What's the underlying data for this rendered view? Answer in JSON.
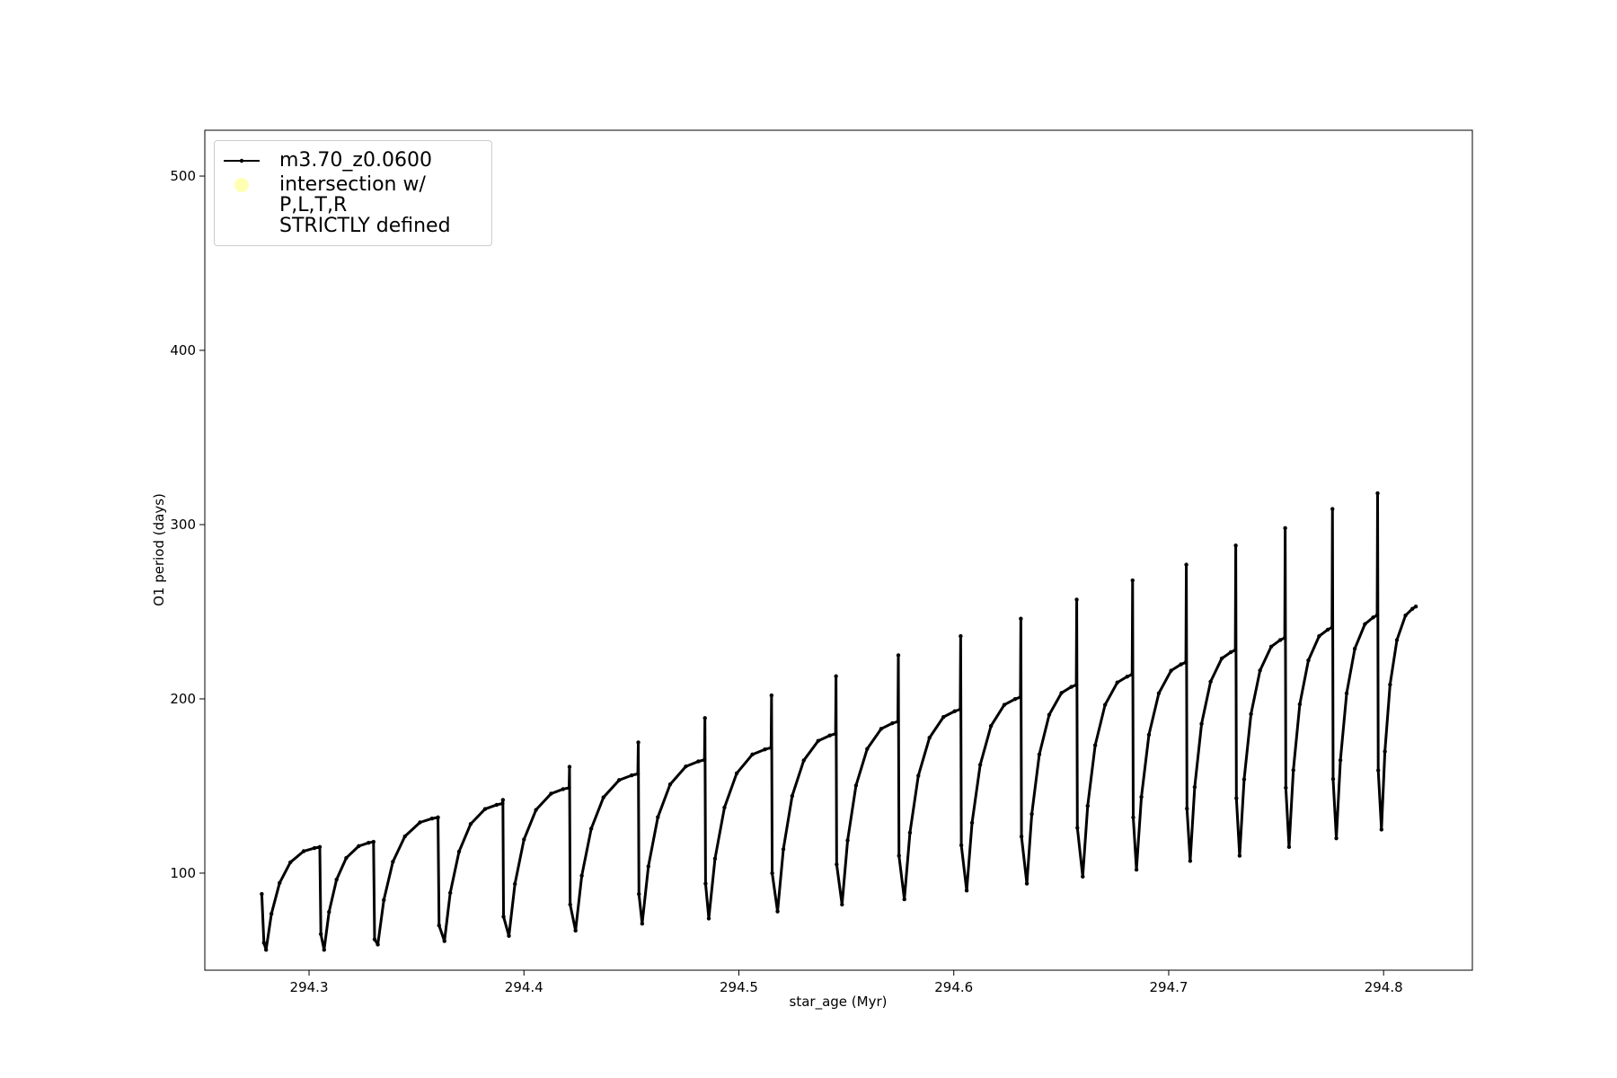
{
  "chart_data": {
    "type": "line",
    "xlabel": "star_age (Myr)",
    "ylabel": "O1 period (days)",
    "xlim": [
      294.2515,
      294.8413
    ],
    "ylim": [
      44.3,
      526.3
    ],
    "xticks": [
      294.3,
      294.4,
      294.5,
      294.6,
      294.7,
      294.8
    ],
    "yticks": [
      100,
      200,
      300,
      400,
      500
    ],
    "legend": "upper left",
    "series": [
      {
        "name": "m3.70_z0.0600",
        "color": "#000000",
        "x": [
          294.278,
          294.279,
          294.28,
          294.2825,
          294.2863,
          294.2913,
          294.2975,
          294.3025,
          294.305,
          294.3055,
          294.307,
          294.3093,
          294.3128,
          294.3173,
          294.3231,
          294.3277,
          294.33,
          294.3305,
          294.332,
          294.3348,
          294.339,
          294.3446,
          294.3516,
          294.3572,
          294.36,
          294.3605,
          294.363,
          294.3657,
          294.3698,
          294.3752,
          294.3819,
          294.3873,
          294.39,
          294.3902,
          294.3905,
          294.393,
          294.3958,
          294.4,
          294.4056,
          294.4126,
          294.4182,
          294.421,
          294.4212,
          294.4215,
          294.424,
          294.4269,
          294.4313,
          294.437,
          294.4443,
          294.4501,
          294.453,
          294.4532,
          294.4535,
          294.455,
          294.4579,
          294.4623,
          294.468,
          294.4753,
          294.4811,
          294.484,
          294.4842,
          294.4845,
          294.486,
          294.4889,
          294.4933,
          294.499,
          294.5063,
          294.5121,
          294.515,
          294.5152,
          294.5155,
          294.518,
          294.5207,
          294.5248,
          294.5302,
          294.5369,
          294.5423,
          294.545,
          294.5452,
          294.5455,
          294.548,
          294.5506,
          294.5545,
          294.5597,
          294.5662,
          294.5714,
          294.574,
          294.5742,
          294.5745,
          294.577,
          294.5796,
          294.5835,
          294.5887,
          294.5952,
          294.6004,
          294.603,
          294.6032,
          294.6035,
          294.606,
          294.6085,
          294.6123,
          294.6173,
          294.6235,
          294.6285,
          294.631,
          294.6312,
          294.6315,
          294.634,
          294.6363,
          294.6398,
          294.6444,
          294.6501,
          294.6547,
          294.657,
          294.6572,
          294.6575,
          294.66,
          294.6623,
          294.6658,
          294.6704,
          294.6761,
          294.6807,
          294.683,
          294.6832,
          294.6835,
          294.685,
          294.6873,
          294.6908,
          294.6954,
          294.7011,
          294.7057,
          294.708,
          294.7082,
          294.7085,
          294.71,
          294.7121,
          294.7153,
          294.7195,
          294.7247,
          294.7289,
          294.731,
          294.7312,
          294.7315,
          294.733,
          294.7351,
          294.7383,
          294.7425,
          294.7477,
          294.7519,
          294.754,
          294.7542,
          294.7545,
          294.756,
          294.758,
          294.761,
          294.765,
          294.77,
          294.774,
          294.776,
          294.7762,
          294.7765,
          294.778,
          294.7799,
          294.7828,
          294.7866,
          294.7913,
          294.7951,
          294.797,
          294.7972,
          294.7975,
          294.799,
          294.8006,
          294.803,
          294.8062,
          294.8102,
          294.8134,
          294.815
        ],
        "values": [
          88,
          60,
          56,
          76.7,
          94.4,
          106.2,
          112.6,
          114.4,
          115,
          65,
          56,
          77.7,
          96.3,
          108.7,
          115.5,
          117.4,
          118,
          62,
          59,
          84.6,
          106.5,
          121.1,
          129.1,
          131.3,
          132,
          70,
          61,
          88.7,
          112.4,
          128.2,
          136.8,
          139.2,
          140,
          142,
          75,
          64,
          93.8,
          119.3,
          136.3,
          145.6,
          148.2,
          149,
          161,
          82,
          67,
          98.5,
          125.5,
          143.5,
          153.4,
          156.1,
          157,
          175,
          88,
          71,
          103.9,
          132.1,
          150.9,
          161.2,
          164.1,
          165,
          189,
          94,
          74,
          108.3,
          137.7,
          157.3,
          168.1,
          171,
          172,
          202,
          100,
          78,
          113.7,
          144.3,
          164.7,
          175.9,
          179,
          180,
          213,
          105,
          82,
          118.8,
          150.3,
          171.3,
          182.8,
          186,
          187,
          225,
          110,
          85,
          123.2,
          155.9,
          177.7,
          189.6,
          192.9,
          194,
          236,
          116,
          90,
          128.9,
          162.2,
          184.4,
          196.6,
          199.9,
          201,
          246,
          121,
          94,
          133.9,
          168.1,
          190.9,
          203.4,
          206.9,
          208,
          257,
          126,
          98,
          138.6,
          173.4,
          196.6,
          209.4,
          212.8,
          214,
          268,
          132,
          102,
          143.7,
          179.4,
          203.2,
          216.2,
          219.8,
          221,
          277,
          137,
          107,
          149.4,
          185.7,
          209.9,
          223.2,
          226.8,
          228,
          288,
          143,
          110,
          153.8,
          191.3,
          216.3,
          230,
          233.8,
          235,
          298,
          149,
          115,
          159.1,
          196.9,
          222.1,
          236,
          239.7,
          241,
          309,
          154,
          120,
          164.8,
          203.2,
          228.8,
          242.9,
          246.7,
          248,
          318,
          159,
          125,
          169.8,
          208.2,
          233.8,
          247.9,
          251.7,
          253
        ]
      },
      {
        "name": "intersection w/ P,L,T,R\nSTRICTLY defined",
        "color": "#ffffb3",
        "marker": "o",
        "x": [],
        "values": []
      }
    ]
  }
}
